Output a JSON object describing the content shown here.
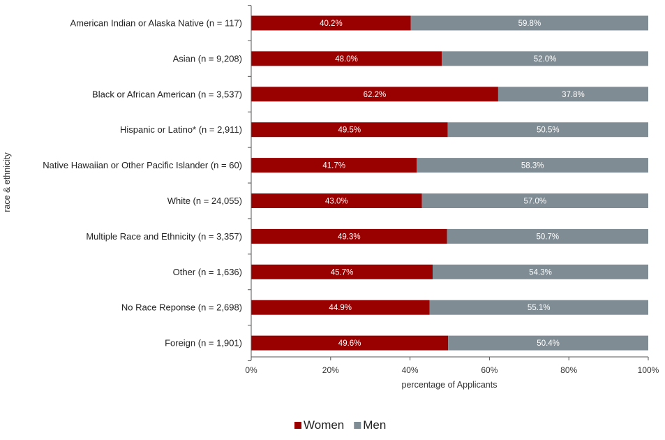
{
  "chart_data": {
    "type": "bar",
    "orientation": "horizontal",
    "stacked": true,
    "categories": [
      "American Indian or Alaska Native (n = 117)",
      "Asian (n = 9,208)",
      "Black or African American (n = 3,537)",
      "Hispanic or Latino* (n = 2,911)",
      "Native Hawaiian or Other Pacific Islander (n = 60)",
      "White (n = 24,055)",
      "Multiple Race and Ethnicity (n = 3,357)",
      "Other (n = 1,636)",
      "No Race Reponse (n = 2,698)",
      "Foreign (n = 1,901)"
    ],
    "series": [
      {
        "name": "Women",
        "color": "#990000",
        "values": [
          40.2,
          48.0,
          62.2,
          49.5,
          41.7,
          43.0,
          49.3,
          45.7,
          44.9,
          49.6
        ],
        "labels": [
          "40.2%",
          "48.0%",
          "62.2%",
          "49.5%",
          "41.7%",
          "43.0%",
          "49.3%",
          "45.7%",
          "44.9%",
          "49.6%"
        ]
      },
      {
        "name": "Men",
        "color": "#7f8c93",
        "values": [
          59.8,
          52.0,
          37.8,
          50.5,
          58.3,
          57.0,
          50.7,
          54.3,
          55.1,
          50.4
        ],
        "labels": [
          "59.8%",
          "52.0%",
          "37.8%",
          "50.5%",
          "58.3%",
          "57.0%",
          "50.7%",
          "54.3%",
          "55.1%",
          "50.4%"
        ]
      }
    ],
    "xlabel": "percentage of  Applicants",
    "ylabel": "race & ethnicity",
    "xlim": [
      0,
      100
    ],
    "xticks": [
      0,
      20,
      40,
      60,
      80,
      100
    ],
    "xtick_labels": [
      "0%",
      "20%",
      "40%",
      "60%",
      "80%",
      "100%"
    ],
    "grid": false,
    "legend_position": "bottom"
  }
}
